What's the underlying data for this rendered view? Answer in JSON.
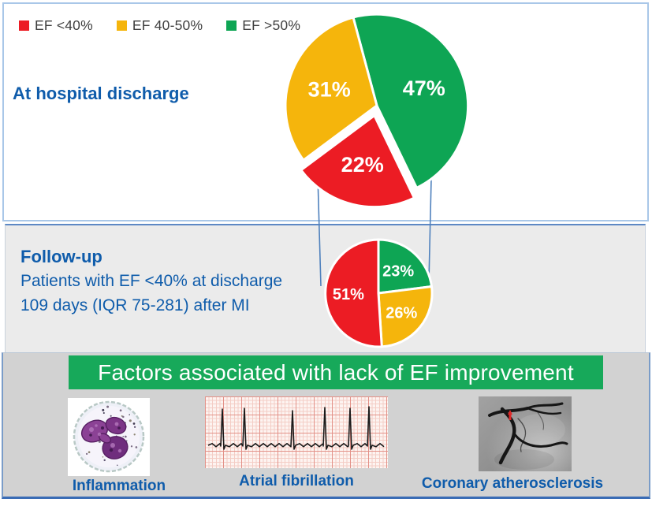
{
  "legend": {
    "items": [
      {
        "label": "EF <40%",
        "color": "#ec1c24"
      },
      {
        "label": "EF 40-50%",
        "color": "#f5b50c"
      },
      {
        "label": "EF >50%",
        "color": "#0ea554"
      }
    ]
  },
  "discharge_section": {
    "title": "At hospital discharge"
  },
  "followup_section": {
    "title": "Follow-up",
    "line1": "Patients with EF <40% at discharge",
    "line2": "109 days (IQR 75-281) after MI"
  },
  "factors_section": {
    "banner": "Factors associated with lack of EF improvement",
    "items": [
      {
        "label": "Inflammation",
        "figure": "neutrophil-micrograph"
      },
      {
        "label": "Atrial fibrillation",
        "figure": "ecg-strip"
      },
      {
        "label": "Coronary atherosclerosis",
        "figure": "coronary-angiogram"
      }
    ]
  },
  "colors": {
    "accent_blue": "#0f5cab",
    "banner_green": "#17a95a",
    "connector_blue": "#4f81bd",
    "red": "#ec1c24",
    "yellow": "#f5b50c",
    "green": "#0ea554"
  },
  "chart_data": [
    {
      "type": "pie",
      "name": "discharge-pie",
      "title": "At hospital discharge",
      "legend_position": "top-left",
      "start_angle_deg": -15,
      "slices": [
        {
          "key": "ef-over-50",
          "label": "EF >50%",
          "value": 47,
          "display": "47%",
          "color": "#0ea554"
        },
        {
          "key": "ef-under-40",
          "label": "EF <40%",
          "value": 22,
          "display": "22%",
          "color": "#ec1c24",
          "exploded": true
        },
        {
          "key": "ef-40-50",
          "label": "EF 40-50%",
          "value": 31,
          "display": "31%",
          "color": "#f5b50c"
        }
      ]
    },
    {
      "type": "pie",
      "name": "followup-pie",
      "title": "Follow-up: patients with EF <40% at discharge, 109 days (IQR 75-281) after MI",
      "start_angle_deg": 0,
      "slices": [
        {
          "key": "ef-over-50",
          "label": "EF >50%",
          "value": 23,
          "display": "23%",
          "color": "#0ea554"
        },
        {
          "key": "ef-40-50",
          "label": "EF 40-50%",
          "value": 26,
          "display": "26%",
          "color": "#f5b50c"
        },
        {
          "key": "ef-under-40",
          "label": "EF <40%",
          "value": 51,
          "display": "51%",
          "color": "#ec1c24"
        }
      ]
    }
  ]
}
